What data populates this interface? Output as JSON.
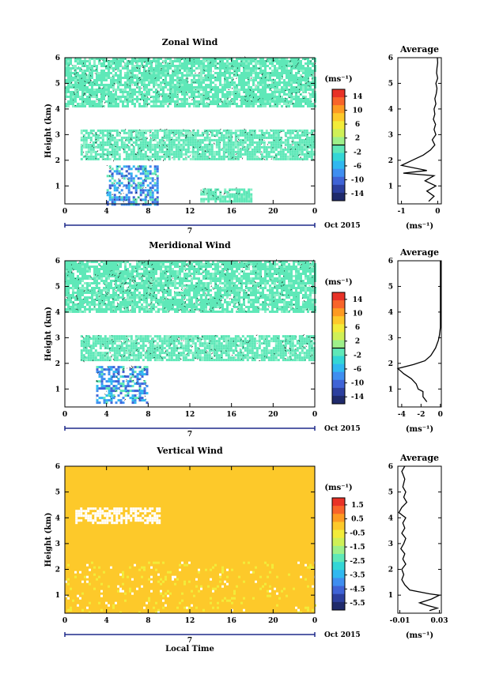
{
  "chart_data": [
    {
      "type": "heatmap",
      "title": "Zonal Wind",
      "ylabel": "Height (km)",
      "xticks": [
        "0",
        "4",
        "8",
        "12",
        "16",
        "20",
        "0"
      ],
      "yticks": [
        "1",
        "2",
        "3",
        "4",
        "5",
        "6"
      ],
      "xlim": [
        0,
        24
      ],
      "ylim": [
        0.3,
        6
      ],
      "date_label": "7",
      "month_label": "Oct 2015",
      "colorbar": {
        "unit": "(ms⁻¹)",
        "ticks": [
          "14",
          "10",
          "6",
          "2",
          "-2",
          "-6",
          "-10",
          "-14"
        ],
        "range": [
          -16,
          16
        ]
      },
      "regions": [
        {
          "x": [
            0,
            24
          ],
          "y": [
            4.1,
            6.0
          ],
          "level": "light",
          "description": "near zero"
        },
        {
          "x": [
            1.5,
            24
          ],
          "y": [
            2.0,
            3.2
          ],
          "level": "light"
        },
        {
          "x": [
            4,
            9
          ],
          "y": [
            0.3,
            1.8
          ],
          "level": "blue",
          "value": -6
        },
        {
          "x": [
            13,
            18
          ],
          "y": [
            0.4,
            0.9
          ],
          "level": "light"
        }
      ]
    },
    {
      "type": "line",
      "title": "Average",
      "xlabel": "(ms⁻¹)",
      "xticks": [
        "-1",
        "0"
      ],
      "yticks": [
        "1",
        "2",
        "3",
        "4",
        "5",
        "6"
      ],
      "xlim": [
        -1.1,
        0.1
      ],
      "ylim": [
        0.3,
        6
      ],
      "points": [
        [
          -0.01,
          6.0
        ],
        [
          0.0,
          5.8
        ],
        [
          -0.02,
          5.6
        ],
        [
          -0.03,
          5.4
        ],
        [
          0.0,
          5.2
        ],
        [
          -0.05,
          5.0
        ],
        [
          -0.02,
          4.8
        ],
        [
          -0.04,
          4.6
        ],
        [
          -0.08,
          4.4
        ],
        [
          -0.05,
          4.2
        ],
        [
          -0.1,
          4.0
        ],
        [
          -0.08,
          3.8
        ],
        [
          -0.12,
          3.6
        ],
        [
          -0.06,
          3.4
        ],
        [
          -0.1,
          3.2
        ],
        [
          -0.05,
          3.0
        ],
        [
          -0.15,
          2.8
        ],
        [
          -0.08,
          2.6
        ],
        [
          -0.2,
          2.4
        ],
        [
          -0.4,
          2.2
        ],
        [
          -0.7,
          2.0
        ],
        [
          -1.0,
          1.8
        ],
        [
          -0.3,
          1.6
        ],
        [
          -0.95,
          1.5
        ],
        [
          -0.1,
          1.4
        ],
        [
          -0.35,
          1.2
        ],
        [
          -0.05,
          1.0
        ],
        [
          -0.3,
          0.8
        ],
        [
          -0.1,
          0.6
        ],
        [
          -0.25,
          0.4
        ]
      ]
    },
    {
      "type": "heatmap",
      "title": "Meridional Wind",
      "ylabel": "Height (km)",
      "xticks": [
        "0",
        "4",
        "8",
        "12",
        "16",
        "20",
        "0"
      ],
      "yticks": [
        "1",
        "2",
        "3",
        "4",
        "5",
        "6"
      ],
      "xlim": [
        0,
        24
      ],
      "ylim": [
        0.3,
        6
      ],
      "date_label": "7",
      "month_label": "Oct 2015",
      "colorbar": {
        "unit": "(ms⁻¹)",
        "ticks": [
          "14",
          "10",
          "6",
          "2",
          "-2",
          "-6",
          "-10",
          "-14"
        ],
        "range": [
          -16,
          16
        ]
      },
      "regions": [
        {
          "x": [
            0,
            24
          ],
          "y": [
            4.0,
            6.0
          ],
          "level": "light"
        },
        {
          "x": [
            1.5,
            24
          ],
          "y": [
            2.1,
            3.1
          ],
          "level": "light"
        },
        {
          "x": [
            3,
            8
          ],
          "y": [
            0.5,
            1.9
          ],
          "level": "blue",
          "value": -6
        }
      ]
    },
    {
      "type": "line",
      "title": "Average",
      "xlabel": "(ms⁻¹)",
      "xticks": [
        "-4",
        "-2",
        "0"
      ],
      "yticks": [
        "1",
        "2",
        "3",
        "4",
        "5",
        "6"
      ],
      "xlim": [
        -4.4,
        0.1
      ],
      "ylim": [
        0.3,
        6
      ],
      "points": [
        [
          0.0,
          6.0
        ],
        [
          0.0,
          5.0
        ],
        [
          0.0,
          4.0
        ],
        [
          0.0,
          3.4
        ],
        [
          -0.1,
          3.1
        ],
        [
          -0.2,
          2.9
        ],
        [
          -0.5,
          2.6
        ],
        [
          -1.0,
          2.3
        ],
        [
          -1.6,
          2.1
        ],
        [
          -2.8,
          1.95
        ],
        [
          -4.4,
          1.8
        ],
        [
          -3.8,
          1.6
        ],
        [
          -3.0,
          1.4
        ],
        [
          -2.5,
          1.2
        ],
        [
          -2.3,
          1.0
        ],
        [
          -1.8,
          0.9
        ],
        [
          -1.8,
          0.7
        ],
        [
          -1.4,
          0.5
        ]
      ]
    },
    {
      "type": "heatmap",
      "title": "Vertical Wind",
      "ylabel": "Height (km)",
      "xlabel": "Local Time",
      "xticks": [
        "0",
        "4",
        "8",
        "12",
        "16",
        "20",
        "0"
      ],
      "yticks": [
        "1",
        "2",
        "3",
        "4",
        "5",
        "6"
      ],
      "xlim": [
        0,
        24
      ],
      "ylim": [
        0.3,
        6
      ],
      "date_label": "7",
      "month_label": "Oct 2015",
      "colorbar": {
        "unit": "(ms⁻¹)",
        "ticks": [
          "1.5",
          "0.5",
          "-0.5",
          "-1.5",
          "-2.5",
          "-3.5",
          "-4.5",
          "-5.5"
        ],
        "range": [
          -6,
          2
        ]
      },
      "regions": [
        {
          "x": [
            0,
            24
          ],
          "y": [
            0.3,
            6.0
          ],
          "level": "orange",
          "value": 0.4
        },
        {
          "x": [
            1,
            9
          ],
          "y": [
            3.8,
            4.4
          ],
          "level": "white"
        },
        {
          "x": [
            0,
            24
          ],
          "y": [
            0.3,
            2.3
          ],
          "level": "yellow_patches",
          "value": -0.3
        }
      ]
    },
    {
      "type": "line",
      "title": "Average",
      "xlabel": "(ms⁻¹)",
      "xticks": [
        "-0.01",
        "0.03"
      ],
      "yticks": [
        "1",
        "2",
        "3",
        "4",
        "5",
        "6"
      ],
      "xlim": [
        -0.012,
        0.032
      ],
      "ylim": [
        0.3,
        6
      ],
      "points": [
        [
          -0.005,
          6.0
        ],
        [
          -0.008,
          5.8
        ],
        [
          -0.005,
          5.5
        ],
        [
          -0.007,
          5.2
        ],
        [
          -0.004,
          5.0
        ],
        [
          -0.006,
          4.8
        ],
        [
          -0.003,
          4.6
        ],
        [
          -0.008,
          4.4
        ],
        [
          -0.011,
          4.2
        ],
        [
          -0.004,
          4.0
        ],
        [
          -0.007,
          3.8
        ],
        [
          -0.005,
          3.6
        ],
        [
          -0.008,
          3.4
        ],
        [
          -0.004,
          3.2
        ],
        [
          -0.006,
          3.0
        ],
        [
          -0.009,
          2.8
        ],
        [
          -0.005,
          2.6
        ],
        [
          -0.007,
          2.4
        ],
        [
          -0.004,
          2.2
        ],
        [
          -0.008,
          2.0
        ],
        [
          -0.006,
          1.8
        ],
        [
          -0.008,
          1.6
        ],
        [
          -0.005,
          1.4
        ],
        [
          0.0,
          1.2
        ],
        [
          0.02,
          1.05
        ],
        [
          0.03,
          1.0
        ],
        [
          0.022,
          0.85
        ],
        [
          0.01,
          0.7
        ],
        [
          0.018,
          0.6
        ],
        [
          0.028,
          0.5
        ],
        [
          0.02,
          0.4
        ]
      ]
    }
  ]
}
